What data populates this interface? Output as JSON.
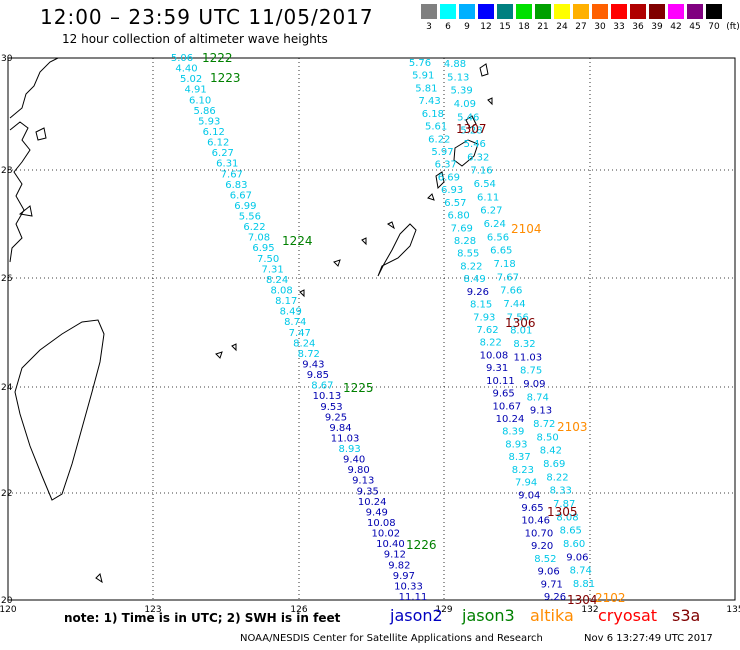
{
  "title": "12:00 – 23:59 UTC 11/05/2017",
  "subtitle": "12 hour collection of altimeter wave heights",
  "scale": {
    "unit": "(ft)",
    "colors": [
      "#808080",
      "#00ffff",
      "#00b0ff",
      "#0000ff",
      "#008080",
      "#00e000",
      "#00a000",
      "#ffff00",
      "#ffb000",
      "#ff6000",
      "#ff0000",
      "#b00000",
      "#800000",
      "#ff00ff",
      "#800080",
      "#000000"
    ],
    "labels": [
      "3",
      "6",
      "9",
      "12",
      "15",
      "18",
      "21",
      "24",
      "27",
      "30",
      "33",
      "36",
      "39",
      "42",
      "45",
      "70"
    ]
  },
  "axes": {
    "lon_labels": [
      "120",
      "123",
      "126",
      "129",
      "132",
      "135"
    ],
    "lat_labels": [
      "30",
      "28",
      "26",
      "24",
      "22",
      "20"
    ]
  },
  "tracks": {
    "t1222": {
      "label": "1222",
      "color": "#008000"
    },
    "t1223": {
      "label": "1223",
      "color": "#008000"
    },
    "t1224": {
      "label": "1224",
      "color": "#008000"
    },
    "t1225": {
      "label": "1225",
      "color": "#008000"
    },
    "t1226": {
      "label": "1226",
      "color": "#008000"
    },
    "t1307": {
      "label": "1307",
      "color": "#800000"
    },
    "t1306": {
      "label": "1306",
      "color": "#800000"
    },
    "t1305": {
      "label": "1305",
      "color": "#800000"
    },
    "t1304": {
      "label": "1304",
      "color": "#800000"
    },
    "t2104": {
      "label": "2104",
      "color": "#ff8c00"
    },
    "t2103": {
      "label": "2103",
      "color": "#ff8c00"
    },
    "t2102": {
      "label": "2102",
      "color": "#ff8c00"
    }
  },
  "wave_heights": {
    "track_west": [
      "5.06",
      "4.40",
      "5.02",
      "4.91",
      "6.10",
      "5.86",
      "5.93",
      "6.12",
      "6.12",
      "6.27",
      "6.31",
      "7.67",
      "6.83",
      "6.67",
      "6.99",
      "5.56",
      "6.22",
      "7.08",
      "6.95",
      "7.50",
      "7.31",
      "8.24",
      "8.08",
      "8.17",
      "8.49",
      "8.74",
      "7.47",
      "8.24",
      "8.72",
      "9.43",
      "9.85",
      "8.67",
      "10.13",
      "9.53",
      "9.25",
      "9.84",
      "11.03",
      "8.93",
      "9.40",
      "9.80",
      "9.13",
      "9.35",
      "10.24",
      "9.49",
      "10.08",
      "10.02",
      "10.40",
      "9.12",
      "9.82",
      "9.97",
      "10.33",
      "11.11"
    ],
    "track_mid": [
      "5.76",
      "5.91",
      "5.81",
      "7.43",
      "6.18",
      "5.61",
      "6.22",
      "5.97",
      "6.37",
      "6.69",
      "6.93",
      "6.57",
      "6.80",
      "7.69",
      "8.28",
      "8.55",
      "8.22",
      "8.49",
      "9.26",
      "8.15",
      "7.93",
      "7.62",
      "8.22",
      "10.08",
      "9.31",
      "10.11",
      "9.65",
      "10.67",
      "10.24",
      "8.39",
      "8.93",
      "8.37",
      "8.23",
      "7.94",
      "9.04",
      "9.65",
      "10.46",
      "10.70",
      "9.20",
      "8.52",
      "9.06",
      "9.71",
      "9.26"
    ],
    "track_east": [
      "4.88",
      "5.13",
      "5.39",
      "4.09",
      "5.46",
      "5.28",
      "5.46",
      "6.32",
      "7.16",
      "6.54",
      "6.11",
      "6.27",
      "6.24",
      "6.56",
      "6.65",
      "7.18",
      "7.67",
      "7.66",
      "7.44",
      "7.56",
      "8.01",
      "8.32",
      "11.03",
      "8.75",
      "9.09",
      "8.74",
      "9.13",
      "8.72",
      "8.50",
      "8.42",
      "8.69",
      "8.22",
      "8.33",
      "7.87",
      "8.08",
      "8.65",
      "8.60",
      "9.06",
      "8.74",
      "8.81"
    ]
  },
  "footer": {
    "note": "note:  1) Time is in UTC;  2) SWH is in feet",
    "satellites": [
      {
        "name": "jason2",
        "color": "#0000c0"
      },
      {
        "name": "jason3",
        "color": "#008000"
      },
      {
        "name": "altika",
        "color": "#ff8c00"
      },
      {
        "name": "cryosat",
        "color": "#ff0000"
      },
      {
        "name": "s3a",
        "color": "#800000"
      }
    ],
    "credit": "NOAA/NESDIS Center for Satellite Applications and Research",
    "timestamp": "Nov  6 13:27:49 UTC 2017"
  }
}
